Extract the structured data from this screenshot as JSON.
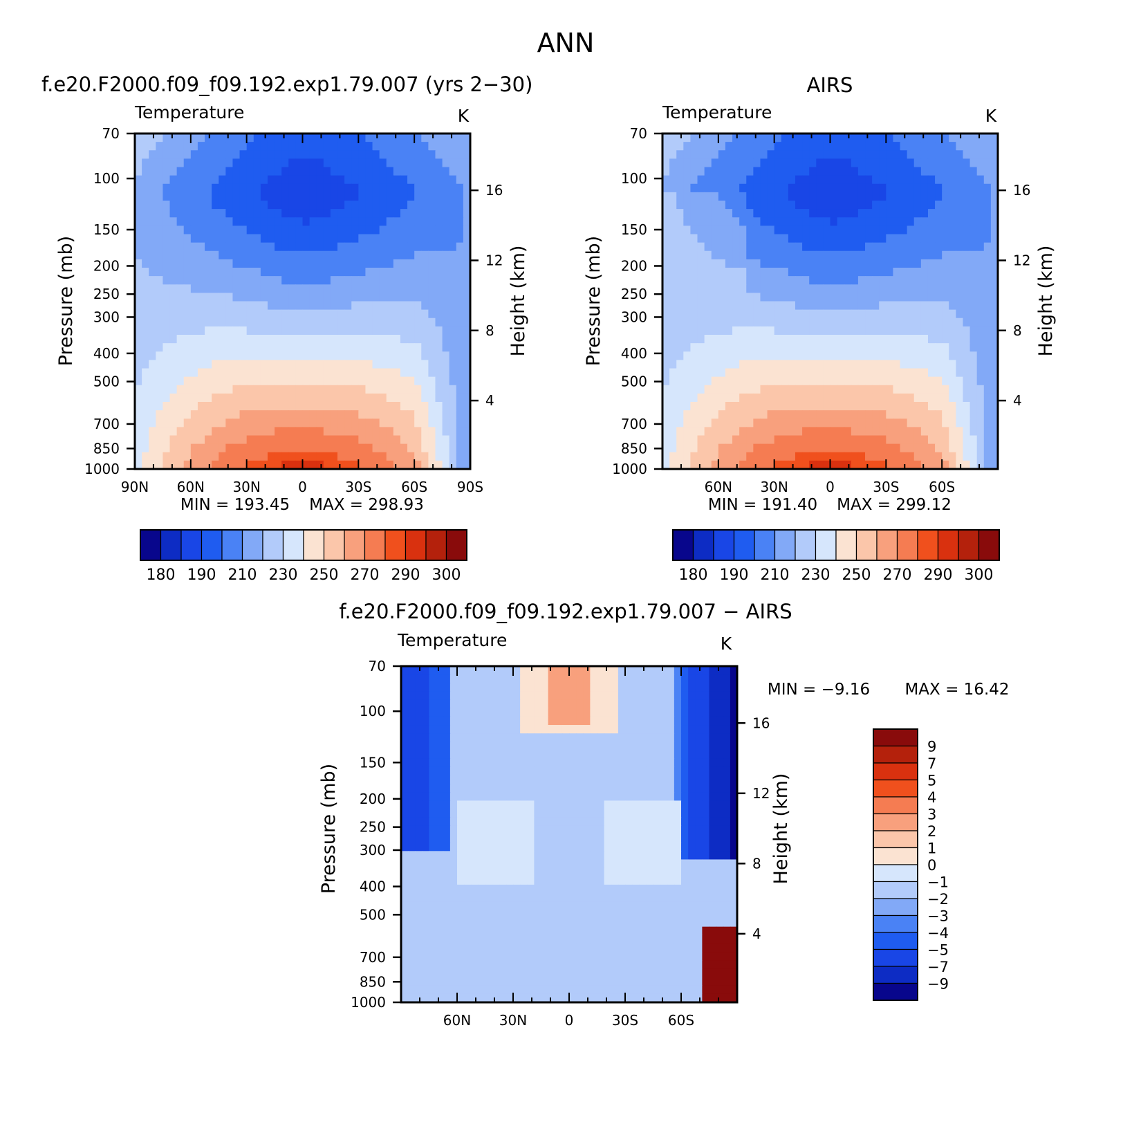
{
  "figure_title": "ANN",
  "colors": {
    "abs_scale": [
      "#08068c",
      "#0d2cc4",
      "#1946e6",
      "#1f5cf0",
      "#4a82f5",
      "#82a9f7",
      "#b2cbfa",
      "#d6e6fc",
      "#fbe3d2",
      "#fbc6aa",
      "#f8a07d",
      "#f57c52",
      "#f0501d",
      "#d9310f",
      "#b4210c",
      "#890b0b"
    ],
    "diff_scale": [
      "#08068c",
      "#0d2cc4",
      "#1946e6",
      "#1f5cf0",
      "#4a82f5",
      "#82a9f7",
      "#b2cbfa",
      "#d6e6fc",
      "#fbe3d2",
      "#fbc6aa",
      "#f8a07d",
      "#f57c52",
      "#f0501d",
      "#d9310f",
      "#b4210c",
      "#890b0b"
    ]
  },
  "chart_data": [
    {
      "type": "heatmap",
      "panel_title": "f.e20.F2000.f09_f09.192.exp1.79.007 (yrs 2−30)",
      "variable": "Temperature",
      "units": "K",
      "ylabel": "Pressure (mb)",
      "ylabel_right": "Height (km)",
      "x_ticks": [
        "90N",
        "60N",
        "30N",
        "0",
        "30S",
        "60S",
        "90S"
      ],
      "xlim": [
        90,
        -90
      ],
      "y_ticks": [
        70,
        100,
        150,
        200,
        250,
        300,
        400,
        500,
        700,
        850,
        1000
      ],
      "ylim": [
        1000,
        70
      ],
      "y_scale": "log",
      "right_ticks": [
        16,
        12,
        8,
        4
      ],
      "min_label": "MIN = 193.45",
      "max_label": "MAX = 298.93",
      "min": 193.45,
      "max": 298.93,
      "colorbar_labels": [
        "180",
        "190",
        "210",
        "230",
        "250",
        "270",
        "290",
        "300"
      ]
    },
    {
      "type": "heatmap",
      "panel_title": "AIRS",
      "variable": "Temperature",
      "units": "K",
      "ylabel": "Pressure (mb)",
      "ylabel_right": "Height (km)",
      "x_ticks": [
        "60N",
        "30N",
        "0",
        "30S",
        "60S"
      ],
      "xlim": [
        90,
        -90
      ],
      "y_ticks": [
        70,
        100,
        150,
        200,
        250,
        300,
        400,
        500,
        700,
        850,
        1000
      ],
      "ylim": [
        1000,
        70
      ],
      "y_scale": "log",
      "right_ticks": [
        16,
        12,
        8,
        4
      ],
      "min_label": "MIN = 191.40",
      "max_label": "MAX = 299.12",
      "min": 191.4,
      "max": 299.12,
      "colorbar_labels": [
        "180",
        "190",
        "210",
        "230",
        "250",
        "270",
        "290",
        "300"
      ]
    },
    {
      "type": "heatmap",
      "panel_title": "f.e20.F2000.f09_f09.192.exp1.79.007 − AIRS",
      "variable": "Temperature",
      "units": "K",
      "ylabel": "Pressure (mb)",
      "ylabel_right": "Height (km)",
      "x_ticks": [
        "60N",
        "30N",
        "0",
        "30S",
        "60S"
      ],
      "xlim": [
        90,
        -90
      ],
      "y_ticks": [
        70,
        100,
        150,
        200,
        250,
        300,
        400,
        500,
        700,
        850,
        1000
      ],
      "ylim": [
        1000,
        70
      ],
      "y_scale": "log",
      "right_ticks": [
        16,
        12,
        8,
        4
      ],
      "min_label": "MIN = −9.16",
      "max_label": "MAX = 16.42",
      "min": -9.16,
      "max": 16.42,
      "colorbar_labels": [
        "9",
        "7",
        "5",
        "4",
        "3",
        "2",
        "1",
        "0",
        "−1",
        "−2",
        "−3",
        "−4",
        "−5",
        "−7",
        "−9"
      ]
    }
  ]
}
